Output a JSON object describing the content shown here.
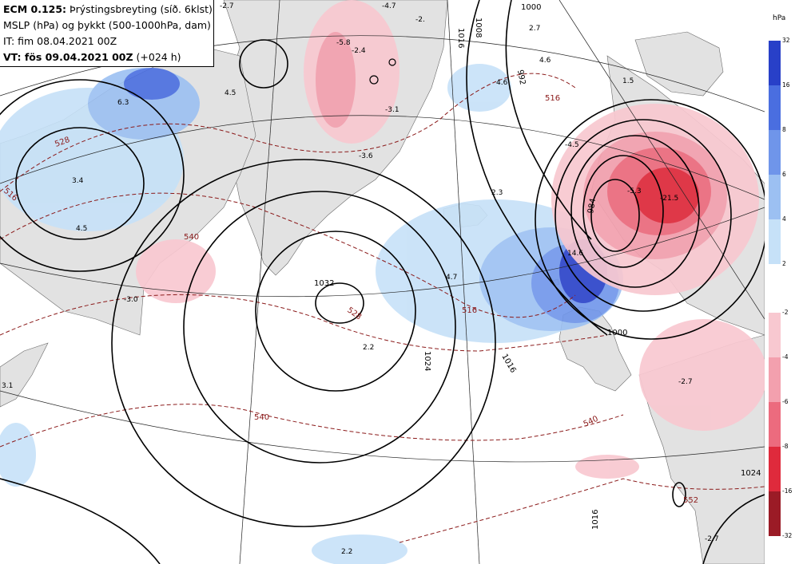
{
  "header": {
    "line1_bold": "ECM 0.125:",
    "line1_rest": " Þrýstingsbreyting (síð. 6klst)",
    "line2": "MSLP (hPa) og þykkt (500-1000hPa, dam)",
    "line3": "IT: fim 08.04.2021 00Z",
    "line4_bold": "VT: fös 09.04.2021 00Z",
    "line4_rest": " (+024 h)"
  },
  "legend": {
    "unit": "hPa",
    "rise": {
      "ticks": [
        "32",
        "16",
        "8",
        "6",
        "4",
        "2"
      ],
      "colors": [
        "#2840c8",
        "#4a6ee0",
        "#6f95ea",
        "#9cc0f2",
        "#c6e1f8"
      ]
    },
    "fall": {
      "ticks": [
        "-2",
        "-4",
        "-6",
        "-8",
        "-16",
        "-32"
      ],
      "colors": [
        "#f8c8d0",
        "#f3a0ae",
        "#ec6b7e",
        "#df2a3c",
        "#9b1b26"
      ]
    }
  },
  "map": {
    "pressure_labels": [
      "1000",
      "1016",
      "992",
      "984",
      "1032",
      "1024",
      "1016",
      "1008",
      "1024",
      "1016",
      "1000"
    ],
    "thickness_labels": [
      "516",
      "528",
      "540",
      "516",
      "528",
      "516",
      "540",
      "540",
      "552"
    ],
    "tendency_values": [
      "-4.7",
      "-2.",
      "-5.8",
      "-2.4",
      "-3.1",
      "-3.6",
      "4.5",
      "6.3",
      "3.4",
      "4.5",
      "-3.0",
      "2.7",
      "4.6",
      "4.6",
      "2.3",
      "4.7",
      "2.2",
      "1.5",
      "-4.5",
      "-5.3",
      "-21.5",
      "14.6",
      "-2.7",
      "3.1",
      "2.2",
      "-2.7",
      "-2.7"
    ]
  }
}
